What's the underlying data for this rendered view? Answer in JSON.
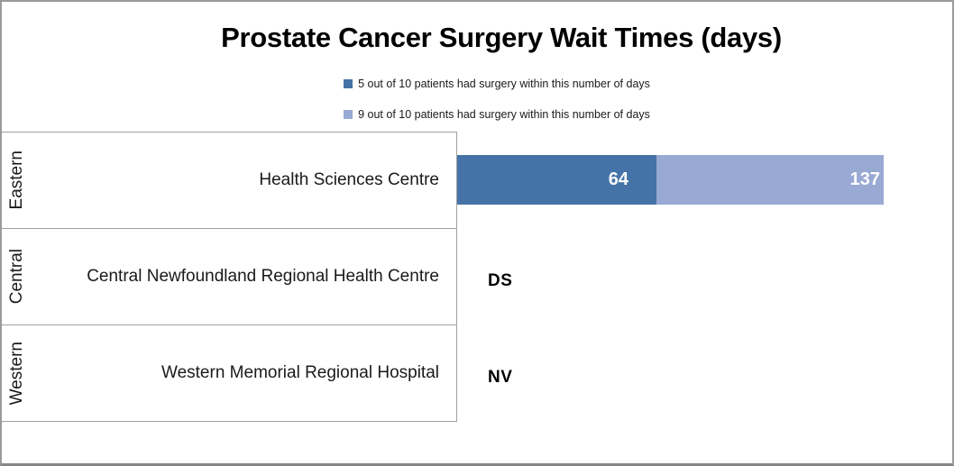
{
  "chart_data": {
    "type": "bar",
    "orientation": "horizontal",
    "title": "Prostate Cancer Surgery Wait Times (days)",
    "legend_position": "top-center",
    "grid": false,
    "xlim": [
      0,
      137
    ],
    "category_groups": [
      "Eastern",
      "Central",
      "Western"
    ],
    "categories": [
      "Health Sciences Centre",
      "Central Newfoundland Regional Health Centre",
      "Western Memorial Regional Hospital"
    ],
    "series": [
      {
        "name": "5 out of 10 patients had surgery within this number of days",
        "color": "#4573a7",
        "values": [
          64,
          null,
          null
        ]
      },
      {
        "name": "9 out of 10 patients had surgery within this number of days",
        "color": "#98a9d3",
        "values": [
          137,
          null,
          null
        ]
      }
    ],
    "bar_label_color": "#ffffff",
    "annotations": [
      "",
      "DS",
      "NV"
    ]
  }
}
